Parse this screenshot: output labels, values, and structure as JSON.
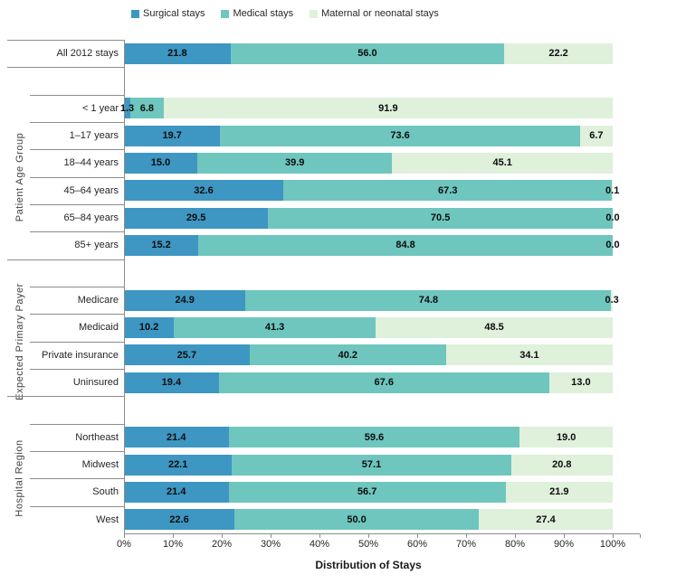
{
  "chart_data": {
    "type": "bar",
    "orientation": "horizontal",
    "stacked": true,
    "percent_stacked": true,
    "title": "",
    "xlabel": "Distribution of Stays",
    "ylabel": "",
    "xlim": [
      0,
      100
    ],
    "x_ticks": [
      "0%",
      "10%",
      "20%",
      "30%",
      "40%",
      "50%",
      "60%",
      "70%",
      "80%",
      "90%",
      "100%"
    ],
    "grid": false,
    "legend_position": "top",
    "series": [
      {
        "name": "Surgical stays",
        "color": "#3E96C2"
      },
      {
        "name": "Medical stays",
        "color": "#6FC6BE"
      },
      {
        "name": "Maternal or neonatal stays",
        "color": "#DFF0DB"
      }
    ],
    "value_label_format": "one-decimal",
    "groups": [
      {
        "label": "",
        "rows": [
          {
            "label": "All 2012 stays",
            "values": [
              21.8,
              56.0,
              22.2
            ]
          }
        ]
      },
      {
        "label": "Patient Age Group",
        "rows": [
          {
            "label": "< 1 year",
            "values": [
              1.3,
              6.8,
              91.9
            ]
          },
          {
            "label": "1–17 years",
            "values": [
              19.7,
              73.6,
              6.7
            ]
          },
          {
            "label": "18–44 years",
            "values": [
              15.0,
              39.9,
              45.1
            ]
          },
          {
            "label": "45–64 years",
            "values": [
              32.6,
              67.3,
              0.1
            ]
          },
          {
            "label": "65–84 years",
            "values": [
              29.5,
              70.5,
              0.0
            ]
          },
          {
            "label": "85+ years",
            "values": [
              15.2,
              84.8,
              0.0
            ]
          }
        ]
      },
      {
        "label": "Expected Primary Payer",
        "rows": [
          {
            "label": "Medicare",
            "values": [
              24.9,
              74.8,
              0.3
            ]
          },
          {
            "label": "Medicaid",
            "values": [
              10.2,
              41.3,
              48.5
            ]
          },
          {
            "label": "Private insurance",
            "values": [
              25.7,
              40.2,
              34.1
            ]
          },
          {
            "label": "Uninsured",
            "values": [
              19.4,
              67.6,
              13.0
            ]
          }
        ]
      },
      {
        "label": "Hospital Region",
        "rows": [
          {
            "label": "Northeast",
            "values": [
              21.4,
              59.6,
              19.0
            ]
          },
          {
            "label": "Midwest",
            "values": [
              22.1,
              57.1,
              20.8
            ]
          },
          {
            "label": "South",
            "values": [
              21.4,
              56.7,
              21.9
            ]
          },
          {
            "label": "West",
            "values": [
              22.6,
              50.0,
              27.4
            ]
          }
        ]
      }
    ],
    "axis_color": "#8c8c8c"
  }
}
